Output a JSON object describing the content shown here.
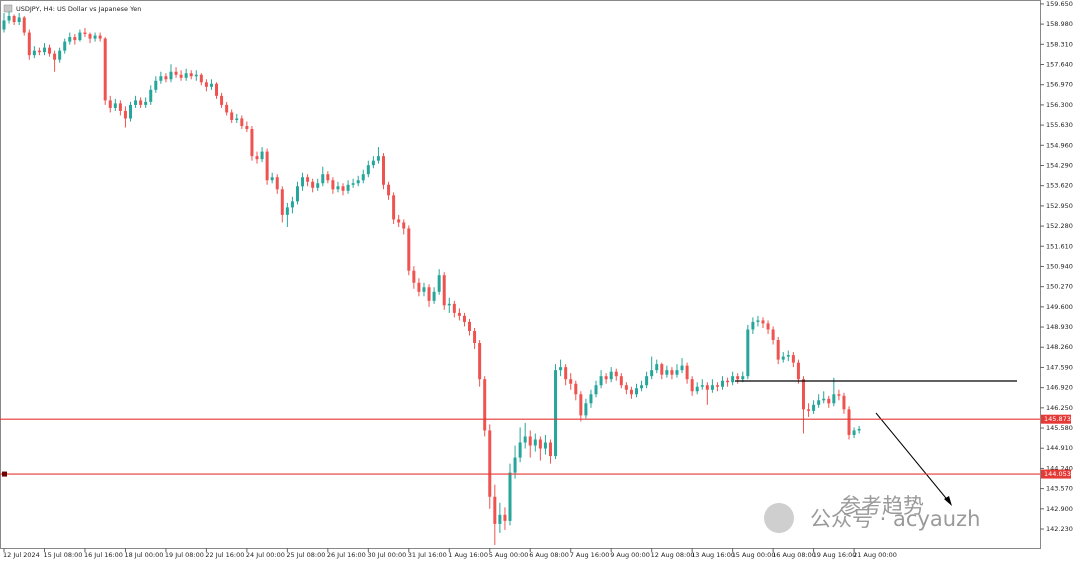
{
  "chart_data": {
    "type": "candlestick",
    "title": "USDJPY, H4: US Dollar vs Japanese Yen",
    "up_color": "#26a69a",
    "down_color": "#ef5350",
    "ylim": [
      141.6,
      159.78
    ],
    "yticks": [
      {
        "value": 159.65,
        "label": "159.650"
      },
      {
        "value": 158.98,
        "label": "158.980"
      },
      {
        "value": 158.31,
        "label": "158.310"
      },
      {
        "value": 157.64,
        "label": "157.640"
      },
      {
        "value": 156.97,
        "label": "156.970"
      },
      {
        "value": 156.3,
        "label": "156.300"
      },
      {
        "value": 155.63,
        "label": "155.630"
      },
      {
        "value": 154.96,
        "label": "154.960"
      },
      {
        "value": 154.29,
        "label": "154.290"
      },
      {
        "value": 153.62,
        "label": "153.620"
      },
      {
        "value": 152.95,
        "label": "152.950"
      },
      {
        "value": 152.28,
        "label": "152.280"
      },
      {
        "value": 151.61,
        "label": "151.610"
      },
      {
        "value": 150.94,
        "label": "150.940"
      },
      {
        "value": 150.27,
        "label": "150.270"
      },
      {
        "value": 149.6,
        "label": "149.600"
      },
      {
        "value": 148.93,
        "label": "148.930"
      },
      {
        "value": 148.26,
        "label": "148.260"
      },
      {
        "value": 147.59,
        "label": "147.590"
      },
      {
        "value": 146.92,
        "label": "146.920"
      },
      {
        "value": 146.25,
        "label": "146.250"
      },
      {
        "value": 145.58,
        "label": "145.580"
      },
      {
        "value": 144.91,
        "label": "144.910"
      },
      {
        "value": 144.24,
        "label": "144.240"
      },
      {
        "value": 143.57,
        "label": "143.570"
      },
      {
        "value": 142.9,
        "label": "142.900"
      },
      {
        "value": 142.23,
        "label": "142.230"
      }
    ],
    "x": [
      "12 Jul 2024",
      null,
      null,
      null,
      null,
      null,
      null,
      null,
      "15 Jul 08:00",
      null,
      null,
      null,
      null,
      null,
      null,
      null,
      "16 Jul 16:00",
      null,
      null,
      null,
      null,
      null,
      null,
      null,
      "18 Jul 00:00",
      null,
      null,
      null,
      null,
      null,
      null,
      null,
      "19 Jul 08:00",
      null,
      null,
      null,
      null,
      null,
      null,
      null,
      "22 Jul 16:00",
      null,
      null,
      null,
      null,
      null,
      null,
      null,
      "24 Jul 00:00",
      null,
      null,
      null,
      null,
      null,
      null,
      null,
      "25 Jul 08:00",
      null,
      null,
      null,
      null,
      null,
      null,
      null,
      "26 Jul 16:00",
      null,
      null,
      null,
      null,
      null,
      null,
      null,
      "30 Jul 00:00",
      null,
      null,
      null,
      null,
      null,
      null,
      null,
      "31 Jul 16:00",
      null,
      null,
      null,
      null,
      null,
      null,
      null,
      "1 Aug 16:00",
      null,
      null,
      null,
      null,
      null,
      null,
      null,
      "5 Aug 00:00",
      null,
      null,
      null,
      null,
      null,
      null,
      null,
      "6 Aug 08:00",
      null,
      null,
      null,
      null,
      null,
      null,
      null,
      "7 Aug 16:00",
      null,
      null,
      null,
      null,
      null,
      null,
      null,
      "9 Aug 00:00",
      null,
      null,
      null,
      null,
      null,
      null,
      null,
      "12 Aug 08:00",
      null,
      null,
      null,
      null,
      null,
      null,
      null,
      "13 Aug 16:00",
      null,
      null,
      null,
      null,
      null,
      null,
      null,
      "15 Aug 00:00",
      null,
      null,
      null,
      null,
      null,
      null,
      null,
      "16 Aug 08:00",
      null,
      null,
      null,
      null,
      null,
      null,
      null,
      "19 Aug 16:00",
      null,
      null,
      null,
      null,
      null,
      null,
      null,
      "21 Aug 00:00",
      null
    ],
    "ohlc": [
      [
        158.8,
        159.35,
        158.7,
        159.1
      ],
      [
        159.1,
        159.4,
        159.0,
        159.25
      ],
      [
        159.25,
        159.3,
        158.95,
        159.05
      ],
      [
        159.05,
        159.35,
        158.95,
        159.2
      ],
      [
        159.2,
        159.25,
        158.6,
        158.7
      ],
      [
        158.7,
        158.8,
        157.8,
        157.95
      ],
      [
        157.95,
        158.25,
        157.85,
        158.1
      ],
      [
        158.1,
        158.2,
        157.95,
        158.05
      ],
      [
        158.05,
        158.35,
        157.95,
        158.2
      ],
      [
        158.2,
        158.3,
        157.9,
        158.0
      ],
      [
        158.0,
        158.1,
        157.4,
        157.8
      ],
      [
        157.8,
        158.2,
        157.7,
        158.1
      ],
      [
        158.1,
        158.5,
        158.0,
        158.4
      ],
      [
        158.4,
        158.7,
        158.3,
        158.55
      ],
      [
        158.55,
        158.65,
        158.3,
        158.45
      ],
      [
        158.45,
        158.8,
        158.4,
        158.7
      ],
      [
        158.7,
        158.85,
        158.55,
        158.65
      ],
      [
        158.65,
        158.7,
        158.35,
        158.5
      ],
      [
        158.5,
        158.7,
        158.4,
        158.6
      ],
      [
        158.6,
        158.7,
        158.4,
        158.5
      ],
      [
        158.5,
        158.55,
        156.3,
        156.45
      ],
      [
        156.45,
        156.6,
        156.05,
        156.2
      ],
      [
        156.2,
        156.5,
        156.1,
        156.35
      ],
      [
        156.35,
        156.45,
        155.95,
        156.1
      ],
      [
        156.1,
        156.25,
        155.55,
        155.85
      ],
      [
        155.85,
        156.4,
        155.75,
        156.3
      ],
      [
        156.3,
        156.6,
        156.2,
        156.45
      ],
      [
        156.45,
        156.55,
        156.2,
        156.3
      ],
      [
        156.3,
        156.55,
        156.2,
        156.4
      ],
      [
        156.4,
        156.95,
        156.3,
        156.8
      ],
      [
        156.8,
        157.25,
        156.7,
        157.1
      ],
      [
        157.1,
        157.4,
        157.0,
        157.25
      ],
      [
        157.25,
        157.35,
        157.05,
        157.15
      ],
      [
        157.15,
        157.65,
        157.05,
        157.4
      ],
      [
        157.4,
        157.55,
        157.2,
        157.3
      ],
      [
        157.3,
        157.45,
        157.1,
        157.2
      ],
      [
        157.2,
        157.5,
        157.1,
        157.35
      ],
      [
        157.35,
        157.45,
        157.15,
        157.25
      ],
      [
        157.25,
        157.45,
        157.1,
        157.3
      ],
      [
        157.3,
        157.35,
        156.95,
        157.05
      ],
      [
        157.05,
        157.15,
        156.75,
        156.9
      ],
      [
        156.9,
        157.15,
        156.8,
        157.0
      ],
      [
        157.0,
        157.05,
        156.5,
        156.6
      ],
      [
        156.6,
        156.7,
        156.2,
        156.3
      ],
      [
        156.3,
        156.4,
        155.95,
        156.05
      ],
      [
        156.05,
        156.15,
        155.7,
        155.8
      ],
      [
        155.8,
        156.0,
        155.7,
        155.85
      ],
      [
        155.85,
        155.95,
        155.5,
        155.6
      ],
      [
        155.6,
        155.75,
        155.4,
        155.5
      ],
      [
        155.5,
        155.6,
        154.45,
        154.6
      ],
      [
        154.6,
        154.75,
        154.35,
        154.5
      ],
      [
        154.5,
        154.9,
        154.4,
        154.75
      ],
      [
        154.75,
        154.85,
        153.65,
        153.8
      ],
      [
        153.8,
        154.05,
        153.7,
        153.9
      ],
      [
        153.9,
        154.0,
        153.35,
        153.5
      ],
      [
        153.5,
        153.6,
        152.4,
        152.65
      ],
      [
        152.65,
        153.05,
        152.25,
        152.9
      ],
      [
        152.9,
        153.25,
        152.7,
        153.1
      ],
      [
        153.1,
        153.75,
        153.0,
        153.6
      ],
      [
        153.6,
        154.05,
        153.45,
        153.9
      ],
      [
        153.9,
        154.0,
        153.6,
        153.75
      ],
      [
        153.75,
        153.85,
        153.4,
        153.55
      ],
      [
        153.55,
        153.85,
        153.45,
        153.7
      ],
      [
        153.7,
        154.25,
        153.6,
        154.0
      ],
      [
        154.0,
        154.1,
        153.7,
        153.8
      ],
      [
        153.8,
        153.9,
        153.35,
        153.5
      ],
      [
        153.5,
        153.75,
        153.4,
        153.6
      ],
      [
        153.6,
        153.7,
        153.3,
        153.45
      ],
      [
        153.45,
        153.8,
        153.35,
        153.65
      ],
      [
        153.65,
        153.85,
        153.55,
        153.7
      ],
      [
        153.7,
        153.95,
        153.6,
        153.8
      ],
      [
        153.8,
        154.15,
        153.7,
        154.0
      ],
      [
        154.0,
        154.45,
        153.9,
        154.3
      ],
      [
        154.3,
        154.6,
        154.2,
        154.45
      ],
      [
        154.45,
        154.9,
        154.35,
        154.6
      ],
      [
        154.6,
        154.7,
        153.5,
        153.65
      ],
      [
        153.65,
        153.75,
        153.15,
        153.3
      ],
      [
        153.3,
        153.4,
        152.35,
        152.5
      ],
      [
        152.5,
        152.65,
        152.25,
        152.4
      ],
      [
        152.4,
        152.5,
        152.0,
        152.2
      ],
      [
        152.2,
        152.3,
        150.65,
        150.8
      ],
      [
        150.8,
        150.95,
        150.2,
        150.4
      ],
      [
        150.4,
        150.55,
        149.95,
        150.1
      ],
      [
        150.1,
        150.4,
        149.95,
        150.25
      ],
      [
        150.25,
        150.35,
        149.6,
        149.8
      ],
      [
        149.8,
        150.25,
        149.7,
        150.1
      ],
      [
        150.1,
        150.85,
        150.0,
        150.65
      ],
      [
        150.65,
        150.75,
        149.5,
        149.65
      ],
      [
        149.65,
        149.9,
        149.4,
        149.7
      ],
      [
        149.7,
        149.8,
        149.25,
        149.4
      ],
      [
        149.4,
        149.55,
        149.15,
        149.3
      ],
      [
        149.3,
        149.4,
        148.95,
        149.1
      ],
      [
        149.1,
        149.2,
        148.65,
        148.8
      ],
      [
        148.8,
        148.9,
        148.2,
        148.4
      ],
      [
        148.4,
        148.5,
        146.95,
        147.2
      ],
      [
        147.2,
        147.3,
        145.3,
        145.5
      ],
      [
        145.5,
        145.7,
        142.9,
        143.3
      ],
      [
        143.3,
        143.7,
        141.7,
        142.4
      ],
      [
        142.4,
        143.1,
        142.1,
        142.7
      ],
      [
        142.7,
        142.95,
        142.2,
        142.5
      ],
      [
        142.5,
        144.4,
        142.35,
        144.1
      ],
      [
        144.1,
        145.0,
        143.9,
        144.6
      ],
      [
        144.6,
        145.6,
        144.45,
        145.1
      ],
      [
        145.1,
        145.75,
        144.9,
        145.3
      ],
      [
        145.3,
        145.5,
        144.6,
        145.0
      ],
      [
        145.0,
        145.4,
        144.8,
        145.2
      ],
      [
        145.2,
        145.3,
        144.5,
        144.9
      ],
      [
        144.9,
        145.35,
        144.7,
        145.1
      ],
      [
        145.1,
        145.2,
        144.4,
        144.65
      ],
      [
        144.65,
        147.7,
        144.55,
        147.5
      ],
      [
        147.5,
        147.85,
        147.3,
        147.6
      ],
      [
        147.6,
        147.7,
        147.0,
        147.2
      ],
      [
        147.2,
        147.4,
        146.85,
        147.05
      ],
      [
        147.05,
        147.15,
        146.5,
        146.7
      ],
      [
        146.7,
        146.8,
        145.8,
        146.0
      ],
      [
        146.0,
        146.55,
        145.9,
        146.4
      ],
      [
        146.4,
        146.85,
        146.25,
        146.7
      ],
      [
        146.7,
        147.15,
        146.6,
        147.0
      ],
      [
        147.0,
        147.5,
        146.9,
        147.3
      ],
      [
        147.3,
        147.4,
        147.05,
        147.2
      ],
      [
        147.2,
        147.6,
        147.1,
        147.45
      ],
      [
        147.45,
        147.55,
        147.15,
        147.3
      ],
      [
        147.3,
        147.4,
        146.9,
        147.0
      ],
      [
        147.0,
        147.1,
        146.7,
        146.85
      ],
      [
        146.85,
        146.95,
        146.55,
        146.7
      ],
      [
        146.7,
        147.05,
        146.6,
        146.9
      ],
      [
        146.9,
        147.15,
        146.8,
        147.0
      ],
      [
        147.0,
        147.45,
        146.9,
        147.3
      ],
      [
        147.3,
        147.95,
        147.2,
        147.5
      ],
      [
        147.5,
        147.85,
        147.4,
        147.7
      ],
      [
        147.7,
        147.75,
        147.2,
        147.35
      ],
      [
        147.35,
        147.65,
        147.25,
        147.5
      ],
      [
        147.5,
        147.6,
        147.2,
        147.35
      ],
      [
        147.35,
        147.7,
        147.25,
        147.5
      ],
      [
        147.5,
        147.9,
        147.4,
        147.65
      ],
      [
        147.65,
        147.75,
        147.05,
        147.2
      ],
      [
        147.2,
        147.3,
        146.65,
        146.8
      ],
      [
        146.8,
        147.1,
        146.7,
        146.95
      ],
      [
        146.95,
        147.2,
        146.85,
        147.0
      ],
      [
        147.0,
        147.1,
        146.35,
        146.85
      ],
      [
        146.85,
        147.2,
        146.75,
        147.0
      ],
      [
        147.0,
        147.1,
        146.8,
        146.95
      ],
      [
        146.95,
        147.3,
        146.85,
        147.15
      ],
      [
        147.15,
        147.25,
        146.95,
        147.1
      ],
      [
        147.1,
        147.45,
        147.0,
        147.3
      ],
      [
        147.3,
        147.4,
        147.05,
        147.2
      ],
      [
        147.2,
        147.45,
        147.1,
        147.3
      ],
      [
        147.3,
        149.0,
        147.2,
        148.85
      ],
      [
        148.85,
        149.25,
        148.7,
        149.1
      ],
      [
        149.1,
        149.3,
        148.95,
        149.15
      ],
      [
        149.15,
        149.25,
        148.9,
        149.05
      ],
      [
        149.05,
        149.15,
        148.7,
        148.85
      ],
      [
        148.85,
        148.95,
        148.35,
        148.5
      ],
      [
        148.5,
        148.6,
        147.7,
        147.85
      ],
      [
        147.85,
        148.1,
        147.75,
        147.95
      ],
      [
        147.95,
        148.15,
        147.8,
        148.0
      ],
      [
        148.0,
        148.1,
        147.6,
        147.75
      ],
      [
        147.75,
        147.85,
        147.05,
        147.2
      ],
      [
        147.2,
        147.3,
        145.4,
        146.2
      ],
      [
        146.2,
        146.4,
        145.95,
        146.15
      ],
      [
        146.15,
        146.5,
        146.05,
        146.35
      ],
      [
        146.35,
        146.7,
        146.25,
        146.5
      ],
      [
        146.5,
        146.8,
        146.4,
        146.55
      ],
      [
        146.55,
        146.65,
        146.25,
        146.4
      ],
      [
        146.4,
        147.25,
        146.3,
        146.7
      ],
      [
        146.7,
        146.85,
        146.5,
        146.65
      ],
      [
        146.65,
        146.75,
        146.05,
        146.2
      ],
      [
        146.2,
        146.3,
        145.2,
        145.35
      ],
      [
        145.35,
        145.6,
        145.25,
        145.5
      ],
      [
        145.5,
        145.65,
        145.4,
        145.55
      ]
    ],
    "hlines": [
      {
        "value": 145.873,
        "label": "145.873",
        "color": "#e53935"
      },
      {
        "value": 144.053,
        "label": "144.053",
        "color": "#e53935"
      }
    ],
    "trendline": {
      "value": 147.14,
      "color": "#000000"
    },
    "annotations": [
      "参考趋势",
      "公众号 · acyauzh"
    ]
  }
}
